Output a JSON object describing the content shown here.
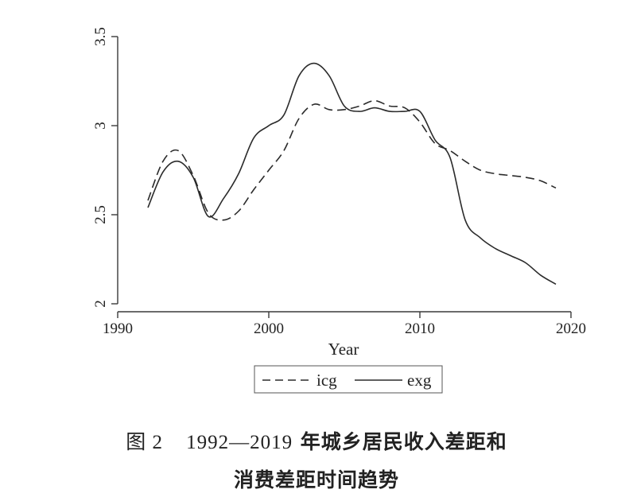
{
  "chart_data": {
    "type": "line",
    "xlabel": "Year",
    "ylabel": "",
    "xlim": [
      1990,
      2020
    ],
    "ylim": [
      2,
      3.5
    ],
    "xticks": [
      "1990",
      "2000",
      "2010",
      "2020"
    ],
    "yticks": [
      "2",
      "2.5",
      "3",
      "3.5"
    ],
    "grid": false,
    "legend_position": "bottom-center",
    "series": [
      {
        "name": "icg",
        "style": "dashed",
        "x": [
          1992,
          1993,
          1994,
          1995,
          1996,
          1997,
          1998,
          1999,
          2000,
          2001,
          2002,
          2003,
          2004,
          2005,
          2006,
          2007,
          2008,
          2009,
          2010,
          2011,
          2012,
          2013,
          2014,
          2015,
          2016,
          2017,
          2018,
          2019
        ],
        "y": [
          2.58,
          2.8,
          2.86,
          2.72,
          2.51,
          2.47,
          2.52,
          2.64,
          2.75,
          2.86,
          3.04,
          3.12,
          3.09,
          3.09,
          3.11,
          3.14,
          3.11,
          3.1,
          3.02,
          2.9,
          2.86,
          2.8,
          2.75,
          2.73,
          2.72,
          2.71,
          2.69,
          2.65
        ]
      },
      {
        "name": "exg",
        "style": "solid",
        "x": [
          1992,
          1993,
          1994,
          1995,
          1996,
          1997,
          1998,
          1999,
          2000,
          2001,
          2002,
          2003,
          2004,
          2005,
          2006,
          2007,
          2008,
          2009,
          2010,
          2011,
          2012,
          2013,
          2014,
          2015,
          2016,
          2017,
          2018,
          2019
        ],
        "y": [
          2.54,
          2.74,
          2.8,
          2.71,
          2.49,
          2.59,
          2.73,
          2.93,
          3,
          3.06,
          3.28,
          3.35,
          3.28,
          3.11,
          3.08,
          3.1,
          3.08,
          3.08,
          3.08,
          2.92,
          2.82,
          2.47,
          2.37,
          2.31,
          2.27,
          2.23,
          2.16,
          2.11
        ]
      }
    ]
  },
  "caption": {
    "figure_label": "图 2",
    "years": "1992—2019",
    "line1_rest": "年城乡居民收入差距和",
    "line2": "消费差距时间趋势"
  },
  "colors": {
    "line": "#2b2b2b",
    "axis": "#3a3a3a"
  }
}
